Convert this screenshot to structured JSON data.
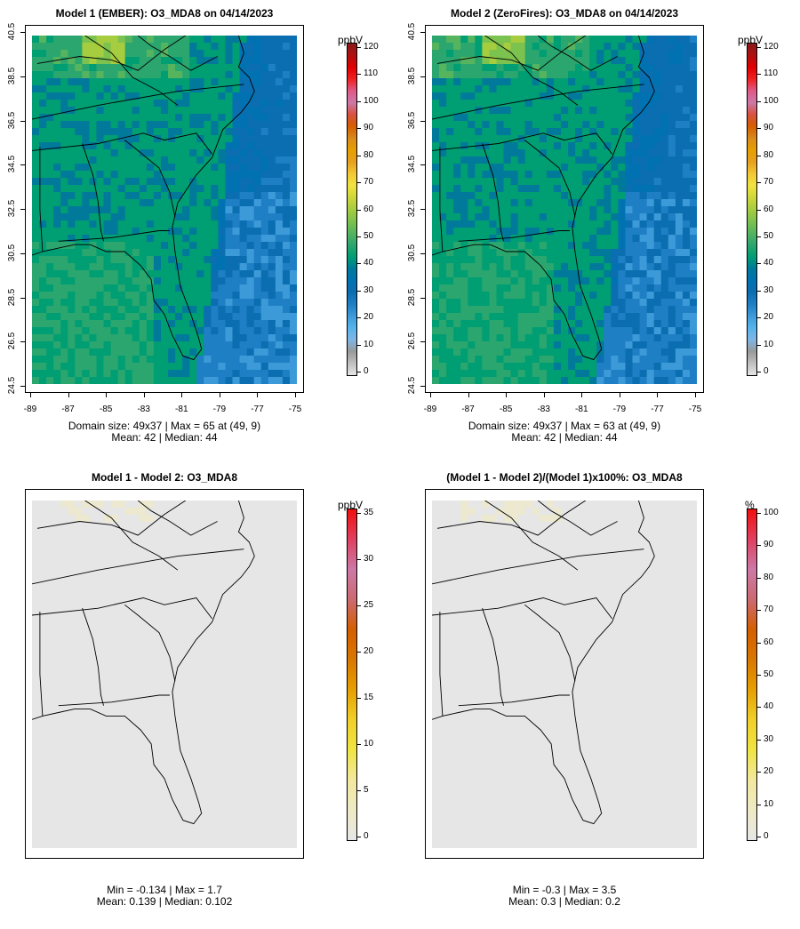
{
  "colors": {
    "conc": [
      "#e6e6e6",
      "#bfbfbf",
      "#999999",
      "#7fb5e6",
      "#56b4e9",
      "#3d9ad9",
      "#1f7fc4",
      "#0a6eb0",
      "#0072b2",
      "#00799a",
      "#009e73",
      "#2ca66f",
      "#56b45e",
      "#7cc24e",
      "#a6cc3f",
      "#cfd63a",
      "#f0e442",
      "#f2c834",
      "#e6a020",
      "#e69f00",
      "#d98b1a",
      "#d55e00",
      "#d95040",
      "#cc79a7",
      "#e05a8a",
      "#f02020",
      "#e00000",
      "#b01010",
      "#8b1a1a"
    ],
    "diff": [
      "#e6e6e6",
      "#eeeac4",
      "#f2e89e",
      "#f0e442",
      "#f0d028",
      "#e69f00",
      "#d97800",
      "#d55e00",
      "#cc6a70",
      "#cc79a7",
      "#e04060",
      "#f01010"
    ]
  },
  "panels": [
    {
      "title": "Model 1 (EMBER): O3_MDA8 on 04/14/2023",
      "stats_line1": "Domain size: 49x37 | Max = 65 at (49, 9)",
      "stats_line2": "Mean: 42 |  Median: 44",
      "unit": "ppbV",
      "show_axes": true,
      "scale": "conc",
      "cbar_ticks": [
        "120",
        "110",
        "100",
        "90",
        "80",
        "70",
        "60",
        "50",
        "40",
        "30",
        "20",
        "10",
        "0"
      ]
    },
    {
      "title": "Model 2 (ZeroFires): O3_MDA8 on 04/14/2023",
      "stats_line1": "Domain size: 49x37 | Max = 63 at (49, 9)",
      "stats_line2": "Mean: 42 |  Median: 44",
      "unit": "ppbV",
      "show_axes": true,
      "scale": "conc",
      "cbar_ticks": [
        "120",
        "110",
        "100",
        "90",
        "80",
        "70",
        "60",
        "50",
        "40",
        "30",
        "20",
        "10",
        "0"
      ]
    },
    {
      "title": "Model 1 - Model 2: O3_MDA8",
      "stats_line1": "Min = -0.134 | Max = 1.7",
      "stats_line2": "Mean: 0.139 |  Median: 0.102",
      "unit": "ppbV",
      "show_axes": false,
      "scale": "diff",
      "cbar_ticks": [
        "35",
        "30",
        "25",
        "20",
        "15",
        "10",
        "5",
        "0"
      ]
    },
    {
      "title": "(Model 1 - Model 2)/(Model 1)x100%: O3_MDA8",
      "stats_line1": "Min = -0.3 | Max = 3.5",
      "stats_line2": "Mean: 0.3 |  Median: 0.2",
      "unit": "%",
      "show_axes": false,
      "scale": "diff",
      "cbar_ticks": [
        "100",
        "90",
        "80",
        "70",
        "60",
        "50",
        "40",
        "30",
        "20",
        "10",
        "0"
      ]
    }
  ],
  "chart_data": [
    {
      "type": "heatmap",
      "title": "Model 1 (EMBER): O3_MDA8 on 04/14/2023",
      "x_ticks": [
        "-89",
        "-87",
        "-85",
        "-83",
        "-81",
        "-79",
        "-77",
        "-75"
      ],
      "y_ticks": [
        "24.5",
        "26.5",
        "28.5",
        "30.5",
        "32.5",
        "34.5",
        "36.5",
        "38.5",
        "40.5"
      ],
      "grid_size": "49x37",
      "max": 65,
      "max_at": [
        49,
        9
      ],
      "mean": 42,
      "median": 44,
      "unit": "ppbV",
      "zlim": [
        0,
        120
      ]
    },
    {
      "type": "heatmap",
      "title": "Model 2 (ZeroFires): O3_MDA8 on 04/14/2023",
      "x_ticks": [
        "-89",
        "-87",
        "-85",
        "-83",
        "-81",
        "-79",
        "-77",
        "-75"
      ],
      "y_ticks": [
        "24.5",
        "26.5",
        "28.5",
        "30.5",
        "32.5",
        "34.5",
        "36.5",
        "38.5",
        "40.5"
      ],
      "grid_size": "49x37",
      "max": 63,
      "max_at": [
        49,
        9
      ],
      "mean": 42,
      "median": 44,
      "unit": "ppbV",
      "zlim": [
        0,
        120
      ]
    },
    {
      "type": "heatmap",
      "title": "Model 1 - Model 2: O3_MDA8",
      "min": -0.134,
      "max": 1.7,
      "mean": 0.139,
      "median": 0.102,
      "unit": "ppbV",
      "zlim": [
        0,
        35
      ]
    },
    {
      "type": "heatmap",
      "title": "(Model 1 - Model 2)/(Model 1)x100%: O3_MDA8",
      "min": -0.3,
      "max": 3.5,
      "mean": 0.3,
      "median": 0.2,
      "unit": "%",
      "zlim": [
        0,
        100
      ]
    }
  ]
}
